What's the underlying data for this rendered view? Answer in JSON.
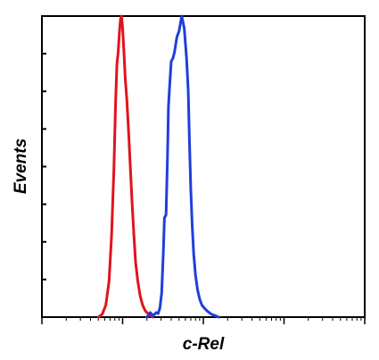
{
  "chart_data": {
    "type": "line",
    "title": "",
    "xlabel": "c-Rel",
    "ylabel": "Events",
    "x_scale": "log",
    "xlim": [
      1,
      10000
    ],
    "ylim": [
      0,
      100
    ],
    "x_major_ticks": [
      1,
      10,
      100,
      1000,
      10000
    ],
    "y_ticks": [
      0,
      12.5,
      25,
      37.5,
      50,
      62.5,
      75,
      87.5,
      100
    ],
    "grid": false,
    "legend": "none",
    "series": [
      {
        "color": "#e0141e",
        "x": [
          5.0,
          5.6,
          6.2,
          6.8,
          7.3,
          7.8,
          8.2,
          8.5,
          8.8,
          9.1,
          9.4,
          9.7,
          10.0,
          10.4,
          10.8,
          11.3,
          11.9,
          12.5,
          13.1,
          13.8,
          14.5,
          15.4,
          16.5,
          17.7,
          19.2,
          21.0,
          23.5
        ],
        "y": [
          0,
          1,
          4,
          12,
          27,
          49,
          72,
          84,
          88,
          94,
          99,
          100,
          96,
          88,
          79,
          72,
          61,
          49,
          38,
          27,
          18,
          12,
          7,
          4,
          2,
          1,
          0
        ]
      },
      {
        "color": "#1f3fdc",
        "x": [
          20,
          22,
          24,
          26,
          27.5,
          29,
          30.5,
          32,
          33,
          34.5,
          36,
          37,
          38.5,
          40,
          42,
          44,
          47,
          50,
          54,
          58,
          62,
          65,
          67,
          70,
          73,
          76,
          80,
          85,
          90,
          96,
          103,
          112,
          125,
          140,
          155
        ],
        "y": [
          0,
          1.5,
          0.5,
          1.5,
          1.2,
          3,
          8,
          22,
          33,
          34,
          53,
          70,
          78,
          85,
          86,
          88,
          93,
          95,
          100,
          96,
          86,
          75,
          60,
          42,
          30,
          21,
          14,
          9,
          6,
          4,
          3,
          2,
          1,
          0.5,
          0
        ]
      }
    ]
  }
}
